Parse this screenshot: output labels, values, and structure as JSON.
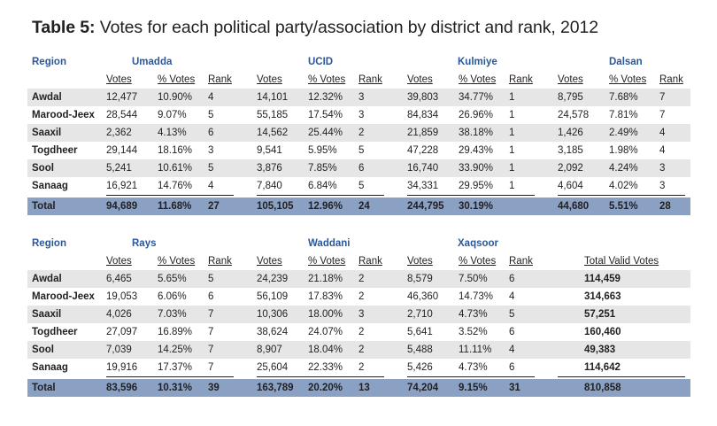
{
  "title": {
    "prefix": "Table 5:",
    "text": "Votes for each political party/association by district and rank, 2012"
  },
  "table1": {
    "region_header": "Region",
    "parties": [
      "Umadda",
      "UCID",
      "Kulmiye",
      "Dalsan"
    ],
    "subheaders": [
      "Votes",
      "% Votes",
      "Rank"
    ],
    "rows": [
      {
        "region": "Awdal",
        "cells": [
          "12,477",
          "10.90%",
          "4",
          "14,101",
          "12.32%",
          "3",
          "39,803",
          "34.77%",
          "1",
          "8,795",
          "7.68%",
          "7"
        ]
      },
      {
        "region": "Marood-Jeex",
        "cells": [
          "28,544",
          "9.07%",
          "5",
          "55,185",
          "17.54%",
          "3",
          "84,834",
          "26.96%",
          "1",
          "24,578",
          "7.81%",
          "7"
        ]
      },
      {
        "region": "Saaxil",
        "cells": [
          "2,362",
          "4.13%",
          "6",
          "14,562",
          "25.44%",
          "2",
          "21,859",
          "38.18%",
          "1",
          "1,426",
          "2.49%",
          "4"
        ]
      },
      {
        "region": "Togdheer",
        "cells": [
          "29,144",
          "18.16%",
          "3",
          "9,541",
          "5.95%",
          "5",
          "47,228",
          "29.43%",
          "1",
          "3,185",
          "1.98%",
          "4"
        ]
      },
      {
        "region": "Sool",
        "cells": [
          "5,241",
          "10.61%",
          "5",
          "3,876",
          "7.85%",
          "6",
          "16,740",
          "33.90%",
          "1",
          "2,092",
          "4.24%",
          "3"
        ]
      },
      {
        "region": "Sanaag",
        "cells": [
          "16,921",
          "14.76%",
          "4",
          "7,840",
          "6.84%",
          "5",
          "34,331",
          "29.95%",
          "1",
          "4,604",
          "4.02%",
          "3"
        ]
      }
    ],
    "total": {
      "region": "Total",
      "cells": [
        "94,689",
        "11.68%",
        "27",
        "105,105",
        "12.96%",
        "24",
        "244,795",
        "30.19%",
        "",
        "44,680",
        "5.51%",
        "28"
      ]
    }
  },
  "table2": {
    "region_header": "Region",
    "parties": [
      "Rays",
      "Waddani",
      "Xaqsoor"
    ],
    "subheaders": [
      "Votes",
      "% Votes",
      "Rank"
    ],
    "valid_header": "Total Valid Votes",
    "rows": [
      {
        "region": "Awdal",
        "cells": [
          "6,465",
          "5.65%",
          "5",
          "24,239",
          "21.18%",
          "2",
          "8,579",
          "7.50%",
          "6"
        ],
        "valid": "114,459"
      },
      {
        "region": "Marood-Jeex",
        "cells": [
          "19,053",
          "6.06%",
          "6",
          "56,109",
          "17.83%",
          "2",
          "46,360",
          "14.73%",
          "4"
        ],
        "valid": "314,663"
      },
      {
        "region": "Saaxil",
        "cells": [
          "4,026",
          "7.03%",
          "7",
          "10,306",
          "18.00%",
          "3",
          "2,710",
          "4.73%",
          "5"
        ],
        "valid": "57,251"
      },
      {
        "region": "Togdheer",
        "cells": [
          "27,097",
          "16.89%",
          "7",
          "38,624",
          "24.07%",
          "2",
          "5,641",
          "3.52%",
          "6"
        ],
        "valid": "160,460"
      },
      {
        "region": "Sool",
        "cells": [
          "7,039",
          "14.25%",
          "7",
          "8,907",
          "18.04%",
          "2",
          "5,488",
          "11.11%",
          "4"
        ],
        "valid": "49,383"
      },
      {
        "region": "Sanaag",
        "cells": [
          "19,916",
          "17.37%",
          "7",
          "25,604",
          "22.33%",
          "2",
          "5,426",
          "4.73%",
          "6"
        ],
        "valid": "114,642"
      }
    ],
    "total": {
      "region": "Total",
      "cells": [
        "83,596",
        "10.31%",
        "39",
        "163,789",
        "20.20%",
        "13",
        "74,204",
        "9.15%",
        "31"
      ],
      "valid": "810,858"
    }
  }
}
